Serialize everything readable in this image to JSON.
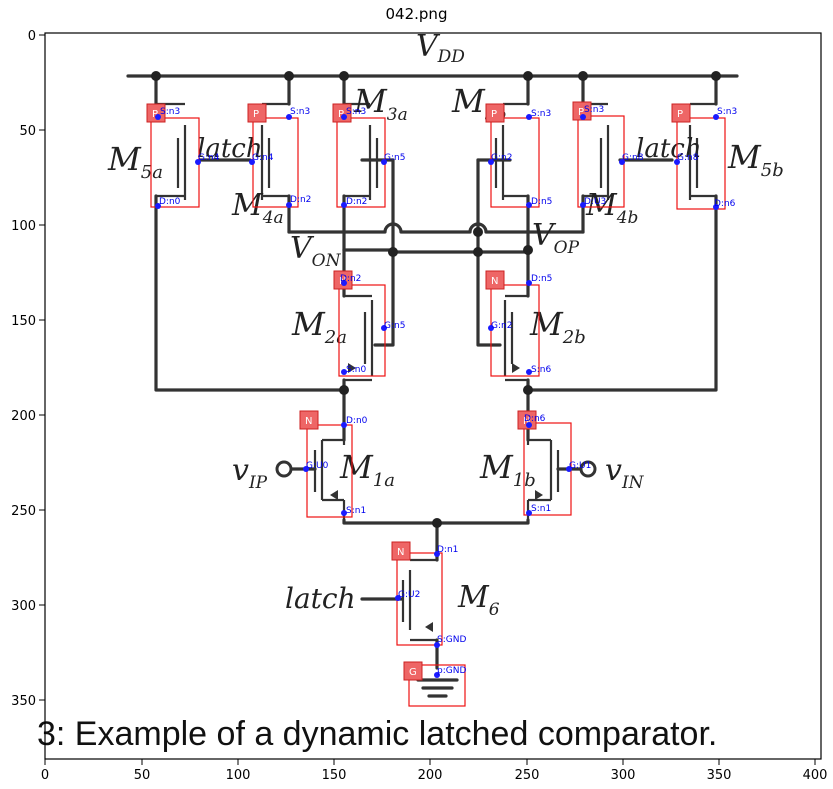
{
  "figure": {
    "title": "042.png",
    "caption": "3: Example of a dynamic latched comparator.",
    "x_ticks": [
      "0",
      "50",
      "100",
      "150",
      "200",
      "250",
      "300",
      "350",
      "400"
    ],
    "y_ticks": [
      "0",
      "50",
      "100",
      "150",
      "200",
      "250",
      "300",
      "350"
    ]
  },
  "circuit_labels": {
    "vdd": "V",
    "vdd_sub": "DD",
    "m5a": "M",
    "m5a_sub": "5a",
    "latch_a": "latch",
    "m4a": "M",
    "m4a_sub": "4a",
    "m3a": "M",
    "m3a_sub": "3a",
    "m3b": "M",
    "m3b_sub": "3b",
    "latch_b": "latch",
    "m4b": "M",
    "m4b_sub": "4b",
    "m5b": "M",
    "m5b_sub": "5b",
    "von": "V",
    "von_sub": "ON",
    "vop": "V",
    "vop_sub": "OP",
    "m2a": "M",
    "m2a_sub": "2a",
    "m2b": "M",
    "m2b_sub": "2b",
    "vip": "v",
    "vip_sub": "IP",
    "m1a": "M",
    "m1a_sub": "1a",
    "m1b": "M",
    "m1b_sub": "1b",
    "vin": "v",
    "vin_sub": "IN",
    "latch_c": "latch",
    "m6": "M",
    "m6_sub": "6"
  },
  "components": [
    {
      "type_letter": "P",
      "terminals": [
        "S:n3",
        "G:n4",
        "D:n0"
      ]
    },
    {
      "type_letter": "P",
      "terminals": [
        "S:n3",
        "G:n4",
        "D:n2"
      ]
    },
    {
      "type_letter": "P",
      "terminals": [
        "S:n3",
        "G:n5",
        "D:n2"
      ]
    },
    {
      "type_letter": "P",
      "terminals": [
        "S:n3",
        "G:n2",
        "D:n5"
      ]
    },
    {
      "type_letter": "P",
      "terminals": [
        "S:n3",
        "G:n8",
        "D:U3"
      ]
    },
    {
      "type_letter": "P",
      "terminals": [
        "S:n3",
        "G:n8",
        "D:n6"
      ]
    },
    {
      "type_letter": "N",
      "terminals": [
        "D:n2",
        "G:n5",
        "S:n0"
      ]
    },
    {
      "type_letter": "N",
      "terminals": [
        "D:n5",
        "G:n2",
        "S:n6"
      ]
    },
    {
      "type_letter": "N",
      "terminals": [
        "D:n0",
        "G:U0",
        "S:n1"
      ]
    },
    {
      "type_letter": "N",
      "terminals": [
        "D:n6",
        "G:U1",
        "S:n1"
      ]
    },
    {
      "type_letter": "N",
      "terminals": [
        "D:n1",
        "G:U2",
        "S:GND"
      ]
    },
    {
      "type_letter": "G",
      "terminals": [
        "p:GND"
      ]
    }
  ]
}
